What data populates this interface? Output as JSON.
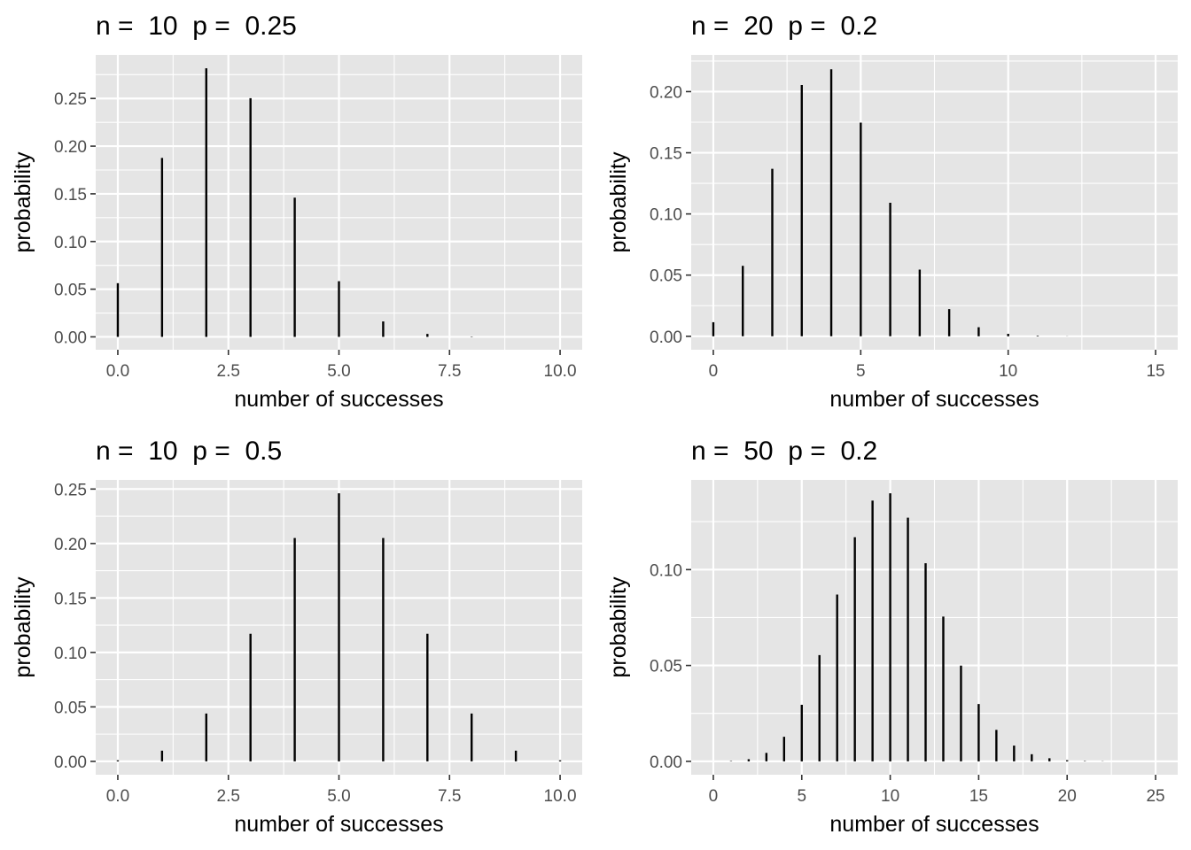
{
  "chart_data": [
    {
      "type": "bar",
      "title": "n =  10  p =  0.25",
      "xlabel": "number of successes",
      "ylabel": "probability",
      "x": [
        0,
        1,
        2,
        3,
        4,
        5,
        6,
        7,
        8,
        9,
        10
      ],
      "values": [
        0.0563,
        0.1877,
        0.2816,
        0.2503,
        0.146,
        0.0584,
        0.0162,
        0.0031,
        0.0004,
        0.0,
        0.0
      ],
      "xlim": [
        -0.5,
        10.5
      ],
      "ylim": [
        -0.0135,
        0.2957
      ],
      "xticks": [
        0,
        2.5,
        5,
        7.5,
        10
      ],
      "xtick_labels": [
        "0.0",
        "2.5",
        "5.0",
        "7.5",
        "10.0"
      ],
      "yticks": [
        0,
        0.05,
        0.1,
        0.15,
        0.2,
        0.25
      ],
      "ytick_labels": [
        "0.00",
        "0.05",
        "0.10",
        "0.15",
        "0.20",
        "0.25"
      ],
      "grid": true
    },
    {
      "type": "bar",
      "title": "n =  20  p =  0.2",
      "xlabel": "number of successes",
      "ylabel": "probability",
      "x": [
        0,
        1,
        2,
        3,
        4,
        5,
        6,
        7,
        8,
        9,
        10,
        11,
        12,
        13,
        14,
        15
      ],
      "values": [
        0.0115,
        0.0576,
        0.1369,
        0.2054,
        0.2182,
        0.1746,
        0.1091,
        0.0545,
        0.0222,
        0.0074,
        0.002,
        0.0005,
        0.0001,
        0.0,
        0.0,
        0.0
      ],
      "xlim": [
        -0.75,
        15.75
      ],
      "ylim": [
        -0.011,
        0.23
      ],
      "xticks": [
        0,
        5,
        10,
        15
      ],
      "xtick_labels": [
        "0",
        "5",
        "10",
        "15"
      ],
      "yticks": [
        0,
        0.05,
        0.1,
        0.15,
        0.2
      ],
      "ytick_labels": [
        "0.00",
        "0.05",
        "0.10",
        "0.15",
        "0.20"
      ],
      "grid": true
    },
    {
      "type": "bar",
      "title": "n =  10  p =  0.5",
      "xlabel": "number of successes",
      "ylabel": "probability",
      "x": [
        0,
        1,
        2,
        3,
        4,
        5,
        6,
        7,
        8,
        9,
        10
      ],
      "values": [
        0.001,
        0.0098,
        0.0439,
        0.1172,
        0.2051,
        0.2461,
        0.2051,
        0.1172,
        0.0439,
        0.0098,
        0.001
      ],
      "xlim": [
        -0.5,
        10.5
      ],
      "ylim": [
        -0.0123,
        0.2584
      ],
      "xticks": [
        0,
        2.5,
        5,
        7.5,
        10
      ],
      "xtick_labels": [
        "0.0",
        "2.5",
        "5.0",
        "7.5",
        "10.0"
      ],
      "yticks": [
        0,
        0.05,
        0.1,
        0.15,
        0.2,
        0.25
      ],
      "ytick_labels": [
        "0.00",
        "0.05",
        "0.10",
        "0.15",
        "0.20",
        "0.25"
      ],
      "grid": true
    },
    {
      "type": "bar",
      "title": "n =  50  p =  0.2",
      "xlabel": "number of successes",
      "ylabel": "probability",
      "x": [
        0,
        1,
        2,
        3,
        4,
        5,
        6,
        7,
        8,
        9,
        10,
        11,
        12,
        13,
        14,
        15,
        16,
        17,
        18,
        19,
        20,
        21,
        22,
        23,
        24,
        25
      ],
      "values": [
        0.0,
        0.0002,
        0.0011,
        0.0044,
        0.0128,
        0.0295,
        0.0554,
        0.087,
        0.1169,
        0.136,
        0.1398,
        0.1271,
        0.1033,
        0.0755,
        0.0499,
        0.0299,
        0.0164,
        0.0082,
        0.0037,
        0.0016,
        0.0006,
        0.0002,
        0.0001,
        0.0,
        0.0,
        0.0
      ],
      "xlim": [
        -1.25,
        26.25
      ],
      "ylim": [
        -0.007,
        0.1468
      ],
      "xticks": [
        0,
        5,
        10,
        15,
        20,
        25
      ],
      "xtick_labels": [
        "0",
        "5",
        "10",
        "15",
        "20",
        "25"
      ],
      "yticks": [
        0,
        0.05,
        0.1
      ],
      "ytick_labels": [
        "0.00",
        "0.05",
        "0.10"
      ],
      "grid": true
    }
  ],
  "colors": {
    "panel_background": "#e5e5e5",
    "grid": "#ffffff",
    "bar": "#000000",
    "tick_text": "#4d4d4d",
    "tick_mark": "#333333"
  }
}
